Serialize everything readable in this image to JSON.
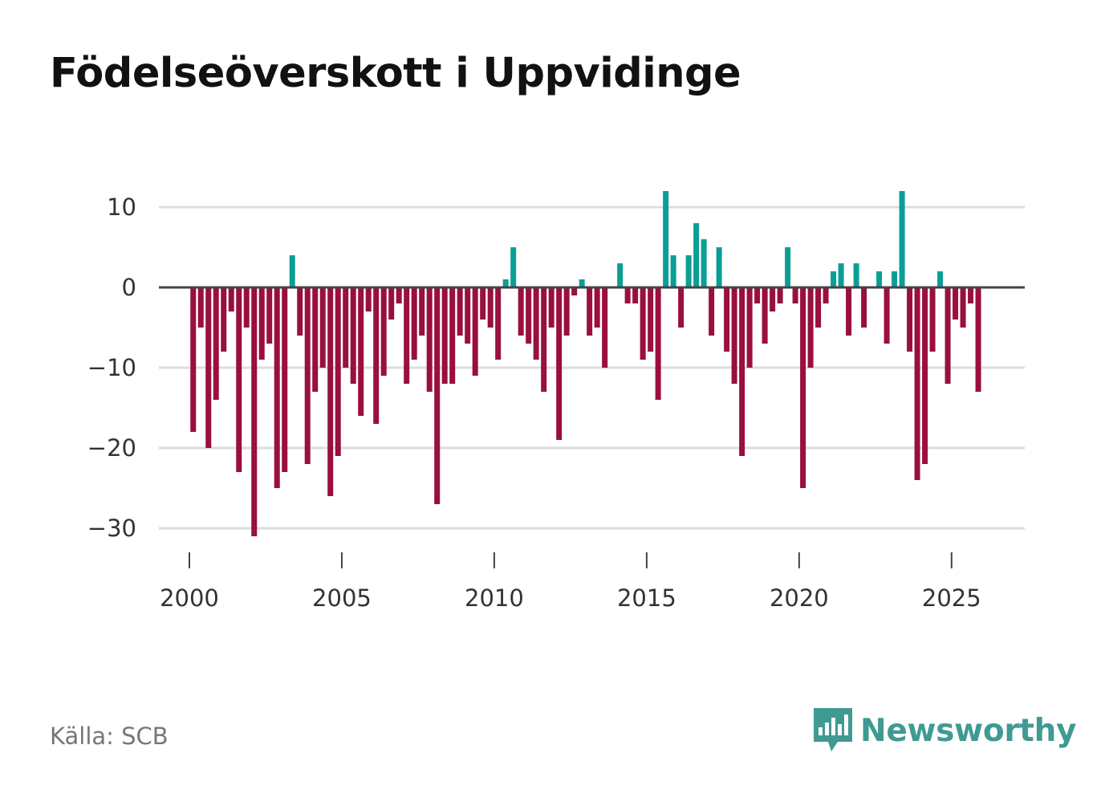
{
  "title": "Födelseöverskott i Uppvidinge",
  "source": "Källa: SCB",
  "brand": "Newsworthy",
  "chart_data": {
    "type": "bar",
    "title": "Födelseöverskott i Uppvidinge",
    "xlabel": "",
    "ylabel": "",
    "ylim": [
      -36,
      14
    ],
    "xlim": [
      1999.0,
      2027.4
    ],
    "x_ticks": [
      2000,
      2005,
      2010,
      2015,
      2020,
      2025
    ],
    "y_ticks": [
      10,
      0,
      -10,
      -20,
      -30
    ],
    "y_tick_labels": [
      "10",
      "0",
      "−10",
      "−20",
      "−30"
    ],
    "grid": true,
    "x_start": 2000.0,
    "period": "quarterly",
    "values": [
      -18,
      -5,
      -20,
      -14,
      -8,
      -3,
      -23,
      -5,
      -31,
      -9,
      -7,
      -25,
      -23,
      4,
      -6,
      -22,
      -13,
      -10,
      -26,
      -21,
      -10,
      -12,
      -16,
      -3,
      -17,
      -11,
      -4,
      -2,
      -12,
      -9,
      -6,
      -13,
      -27,
      -12,
      -12,
      -6,
      -7,
      -11,
      -4,
      -5,
      -9,
      1,
      5,
      -6,
      -7,
      -9,
      -13,
      -5,
      -19,
      -6,
      -1,
      1,
      -6,
      -5,
      -10,
      0,
      3,
      -2,
      -2,
      -9,
      -8,
      -14,
      12,
      4,
      -5,
      4,
      8,
      6,
      -6,
      5,
      -8,
      -12,
      -21,
      -10,
      -2,
      -7,
      -3,
      -2,
      5,
      -2,
      -25,
      -10,
      -5,
      -2,
      2,
      3,
      -6,
      3,
      -5,
      0,
      2,
      -7,
      2,
      12,
      -8,
      -24,
      -22,
      -8,
      2,
      -12,
      -4,
      -5,
      -2,
      -13
    ],
    "colors": {
      "positive": "#0a9e96",
      "negative": "#990f3d",
      "zero_line": "#444444",
      "grid": "#dddddd"
    }
  }
}
